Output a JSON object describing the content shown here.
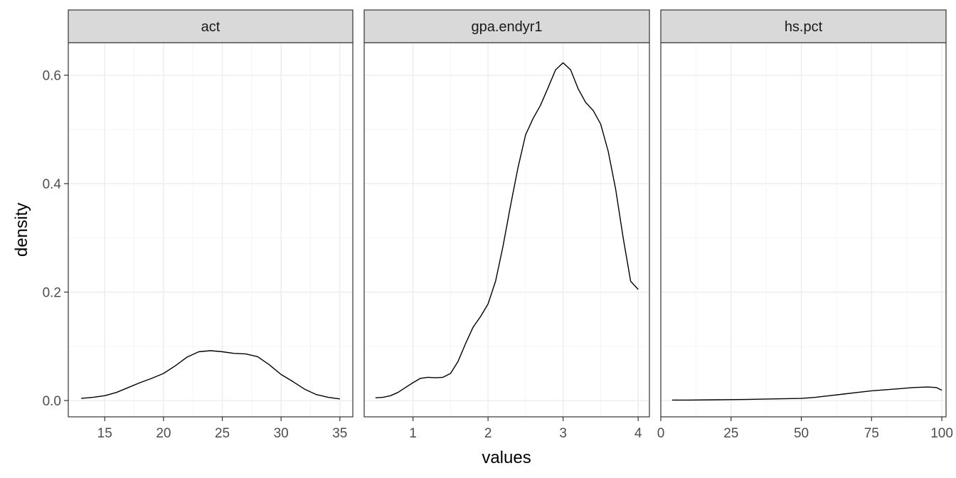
{
  "chart_data": {
    "type": "line",
    "facet_layout": "1 row x 3 columns, shared y axis, free x scales",
    "xlabel": "values",
    "ylabel": "density",
    "ylim": [
      -0.03,
      0.66
    ],
    "y_ticks": [
      0.0,
      0.2,
      0.4,
      0.6
    ],
    "y_tick_labels": [
      "0.0",
      "0.2",
      "0.4",
      "0.6"
    ],
    "grid": true,
    "theme": "black-and-white with grey facet strips",
    "colors": {
      "line": "#000000",
      "strip_fill": "#d9d9d9",
      "grid_major": "#ebebeb",
      "grid_minor": "#f5f5f5",
      "border": "#333333"
    },
    "panels": [
      {
        "strip": "act",
        "xlim": [
          11.9,
          36.1
        ],
        "x_ticks": [
          15,
          20,
          25,
          30,
          35
        ],
        "x_tick_labels": [
          "15",
          "20",
          "25",
          "30",
          "35"
        ],
        "series": [
          {
            "x": [
              13,
              14,
              15,
              16,
              17,
              18,
              19,
              20,
              21,
              22,
              23,
              24,
              25,
              26,
              27,
              28,
              29,
              30,
              31,
              32,
              33,
              34,
              35
            ],
            "y": [
              0.004,
              0.006,
              0.009,
              0.015,
              0.024,
              0.033,
              0.041,
              0.05,
              0.064,
              0.08,
              0.09,
              0.092,
              0.09,
              0.087,
              0.086,
              0.081,
              0.066,
              0.048,
              0.035,
              0.021,
              0.011,
              0.006,
              0.003
            ]
          }
        ]
      },
      {
        "strip": "gpa.endyr1",
        "xlim": [
          0.35,
          4.15
        ],
        "x_ticks": [
          1,
          2,
          3,
          4
        ],
        "x_tick_labels": [
          "1",
          "2",
          "3",
          "4"
        ],
        "series": [
          {
            "x": [
              0.5,
              0.6,
              0.7,
              0.8,
              0.9,
              1.0,
              1.1,
              1.2,
              1.3,
              1.4,
              1.5,
              1.6,
              1.7,
              1.8,
              1.9,
              2.0,
              2.1,
              2.2,
              2.3,
              2.4,
              2.5,
              2.6,
              2.7,
              2.8,
              2.9,
              3.0,
              3.1,
              3.2,
              3.3,
              3.4,
              3.5,
              3.6,
              3.7,
              3.8,
              3.9,
              4.0
            ],
            "y": [
              0.005,
              0.006,
              0.009,
              0.015,
              0.024,
              0.033,
              0.041,
              0.043,
              0.042,
              0.043,
              0.05,
              0.072,
              0.105,
              0.135,
              0.155,
              0.178,
              0.22,
              0.285,
              0.36,
              0.43,
              0.49,
              0.52,
              0.545,
              0.577,
              0.61,
              0.623,
              0.61,
              0.575,
              0.55,
              0.535,
              0.51,
              0.46,
              0.39,
              0.3,
              0.22,
              0.205
            ]
          }
        ]
      },
      {
        "strip": "hs.pct",
        "xlim": [
          0,
          101.5
        ],
        "x_ticks": [
          0,
          25,
          50,
          75,
          100
        ],
        "x_tick_labels": [
          "0",
          "25",
          "50",
          "75",
          "100"
        ],
        "series": [
          {
            "x": [
              4,
              10,
              20,
              30,
              40,
              50,
              55,
              60,
              65,
              70,
              75,
              80,
              85,
              90,
              95,
              98,
              100
            ],
            "y": [
              0.001,
              0.001,
              0.0015,
              0.002,
              0.003,
              0.004,
              0.006,
              0.009,
              0.012,
              0.015,
              0.018,
              0.02,
              0.022,
              0.024,
              0.025,
              0.024,
              0.019
            ]
          }
        ]
      }
    ]
  }
}
